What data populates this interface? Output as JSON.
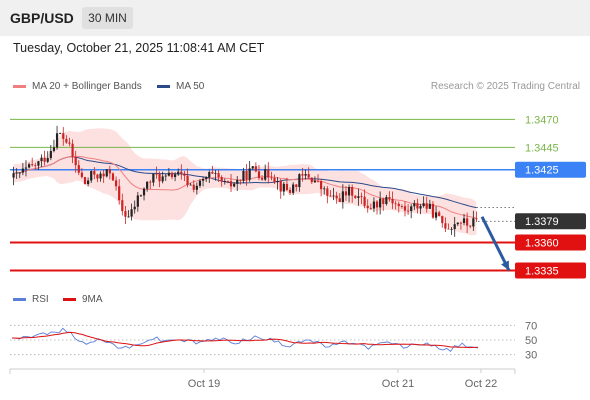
{
  "header": {
    "pair": "GBP/USD",
    "timeframe": "30 MIN"
  },
  "timestamp": "Tuesday, October 21, 2025 11:08:41 AM CET",
  "legend": {
    "ma20_label": "MA 20 + Bollinger Bands",
    "ma50_label": "MA 50",
    "copyright": "Research © 2025 Trading Central",
    "rsi_label": "RSI",
    "ma9_label": "9MA"
  },
  "colors": {
    "bullish": "#222222",
    "bearish": "#cc2222",
    "ma20": "#f08080",
    "bollinger_band": "#fde0e0",
    "ma50": "#2a4a8a",
    "resistance_green": "#7ab648",
    "pivot_blue": "#3b82f6",
    "support_red": "#e11111",
    "arrow": "#2a5aa0",
    "rsi": "#5a7fd8",
    "rsi_ma": "#dd1111"
  },
  "levels": [
    {
      "value": "1.3470",
      "kind": "resistance"
    },
    {
      "value": "1.3445",
      "kind": "resistance"
    },
    {
      "value": "1.3425",
      "kind": "pivot"
    },
    {
      "value": "1.3379",
      "kind": "last"
    },
    {
      "value": "1.3360",
      "kind": "support"
    },
    {
      "value": "1.3335",
      "kind": "support"
    }
  ],
  "rsi_ticks": [
    "70",
    "50",
    "30"
  ],
  "x_labels": [
    "Oct 19",
    "Oct 21",
    "Oct 22"
  ],
  "chart_data": {
    "type": "candlestick",
    "title": "GBP/USD",
    "timeframe": "30 MIN",
    "y_unit": "price",
    "ylim": [
      1.3322,
      1.349
    ],
    "rsi_ylim": [
      20,
      80
    ],
    "x_range": [
      "Oct 17",
      "Oct 22"
    ],
    "close_path": [
      1.3418,
      1.3423,
      1.3427,
      1.3432,
      1.344,
      1.3458,
      1.345,
      1.3428,
      1.3412,
      1.3422,
      1.3418,
      1.3425,
      1.339,
      1.3382,
      1.34,
      1.3412,
      1.342,
      1.3416,
      1.3422,
      1.3418,
      1.341,
      1.3412,
      1.342,
      1.3416,
      1.341,
      1.3414,
      1.342,
      1.3426,
      1.342,
      1.3422,
      1.341,
      1.3406,
      1.3416,
      1.342,
      1.3414,
      1.3404,
      1.3398,
      1.3402,
      1.3406,
      1.3398,
      1.3392,
      1.3396,
      1.3402,
      1.3394,
      1.3388,
      1.3392,
      1.3395,
      1.3388,
      1.3378,
      1.3374,
      1.338,
      1.3376,
      1.3379
    ],
    "rsi_path": [
      55,
      54,
      56,
      57,
      59,
      60,
      65,
      52,
      45,
      50,
      48,
      46,
      40,
      38,
      44,
      50,
      52,
      48,
      51,
      50,
      47,
      46,
      50,
      52,
      49,
      47,
      50,
      54,
      51,
      50,
      44,
      43,
      49,
      51,
      46,
      41,
      43,
      46,
      47,
      42,
      40,
      44,
      47,
      43,
      40,
      44,
      46,
      41,
      36,
      37,
      44,
      42,
      40
    ],
    "annotation": "arrow toward 1.3335"
  }
}
